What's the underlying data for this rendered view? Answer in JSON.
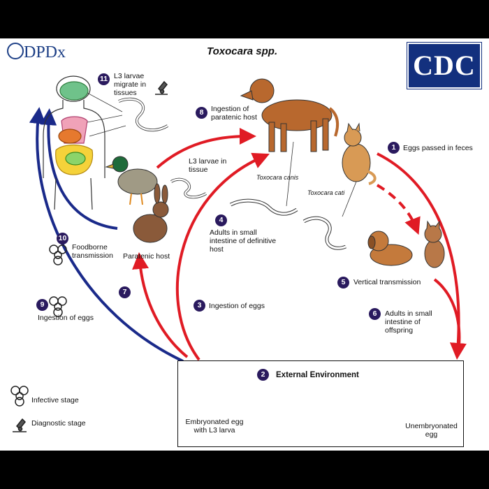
{
  "header": {
    "title": "Toxocara spp.",
    "logo_left": "DPDx",
    "logo_right": "CDC"
  },
  "steps": [
    {
      "n": "1",
      "text": "Eggs passed in feces"
    },
    {
      "n": "2",
      "text": "External Environment"
    },
    {
      "n": "3",
      "text": "Ingestion of eggs"
    },
    {
      "n": "4",
      "text": "Adults in small intestine of definitive host"
    },
    {
      "n": "5",
      "text": "Vertical transmission"
    },
    {
      "n": "6",
      "text": "Adults in small intestine of offspring"
    },
    {
      "n": "7",
      "text": ""
    },
    {
      "n": "8",
      "text": "Ingestion of paratenic host"
    },
    {
      "n": "9",
      "text": "Ingestion of eggs"
    },
    {
      "n": "10",
      "text": "Foodborne transmission"
    },
    {
      "n": "11",
      "text": "L3 larvae migrate in tissues"
    }
  ],
  "labels": {
    "l3_in_tissue": "L3 larvae in tissue",
    "paratenic_host": "Paratenic host",
    "toxocara_canis": "Toxocara canis",
    "toxocara_cati": "Toxocara cati",
    "embryonated": "Embryonated egg with L3 larva",
    "unembryonated": "Unembryonated egg"
  },
  "legend": {
    "infective": "Infective stage",
    "diagnostic": "Diagnostic stage"
  },
  "colors": {
    "red_arrow": "#e01b24",
    "blue_arrow": "#1a2a8a",
    "badge": "#2a1a5e",
    "cdc_blue": "#13307e"
  }
}
